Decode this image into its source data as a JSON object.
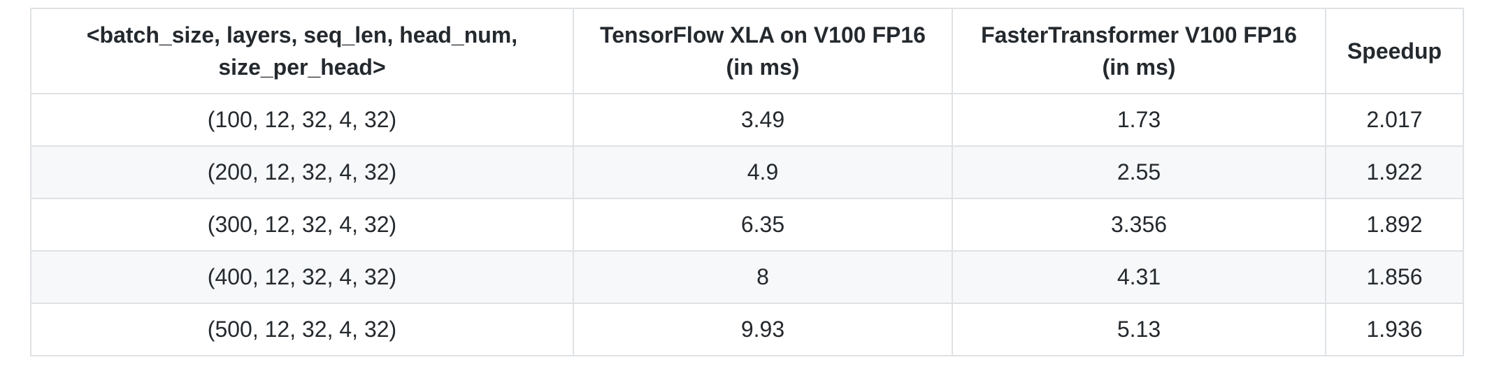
{
  "table": {
    "headers": [
      {
        "line1": "<batch_size, layers, seq_len, head_num,",
        "line2": "size_per_head>"
      },
      {
        "line1": "TensorFlow XLA on V100 FP16",
        "line2": "(in ms)"
      },
      {
        "line1": "FasterTransformer V100 FP16",
        "line2": "(in ms)"
      },
      {
        "line1": "Speedup",
        "line2": ""
      }
    ],
    "rows": [
      [
        "(100, 12, 32, 4, 32)",
        "3.49",
        "1.73",
        "2.017"
      ],
      [
        "(200, 12, 32, 4, 32)",
        "4.9",
        "2.55",
        "1.922"
      ],
      [
        "(300, 12, 32, 4, 32)",
        "6.35",
        "3.356",
        "1.892"
      ],
      [
        "(400, 12, 32, 4, 32)",
        "8",
        "4.31",
        "1.856"
      ],
      [
        "(500, 12, 32, 4, 32)",
        "9.93",
        "5.13",
        "1.936"
      ]
    ]
  }
}
